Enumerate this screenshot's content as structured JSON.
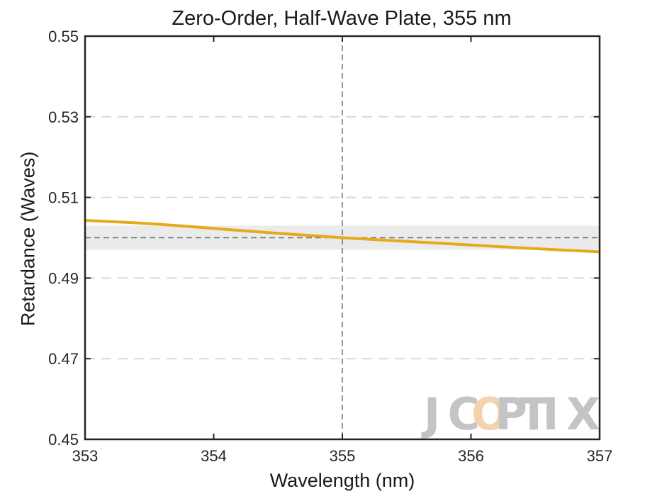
{
  "chart_data": {
    "type": "line",
    "title": "Zero-Order, Half-Wave Plate, 355 nm",
    "xlabel": "Wavelength (nm)",
    "ylabel": "Retardance (Waves)",
    "xlim": [
      353,
      357
    ],
    "ylim": [
      0.45,
      0.55
    ],
    "x_ticks": [
      "353",
      "354",
      "355",
      "356",
      "357"
    ],
    "y_ticks": [
      "0.45",
      "0.47",
      "0.49",
      "0.51",
      "0.53",
      "0.55"
    ],
    "series": [
      {
        "name": "Retardance",
        "color": "#e8a81c",
        "x": [
          353.0,
          353.5,
          354.0,
          354.5,
          355.0,
          355.5,
          356.0,
          356.5,
          357.0
        ],
        "y": [
          0.5043,
          0.5035,
          0.5023,
          0.5011,
          0.5,
          0.4991,
          0.4982,
          0.4973,
          0.4965
        ]
      }
    ],
    "reference_lines": {
      "design_wavelength": 355,
      "target_retardance": 0.5,
      "tolerance_band": [
        0.497,
        0.503
      ]
    },
    "grid": "horizontal dashed",
    "colors": {
      "band": "#ebebeb",
      "grid": "#d9d9d9",
      "reference": "#707070"
    }
  },
  "watermark": "JCOPTIX"
}
